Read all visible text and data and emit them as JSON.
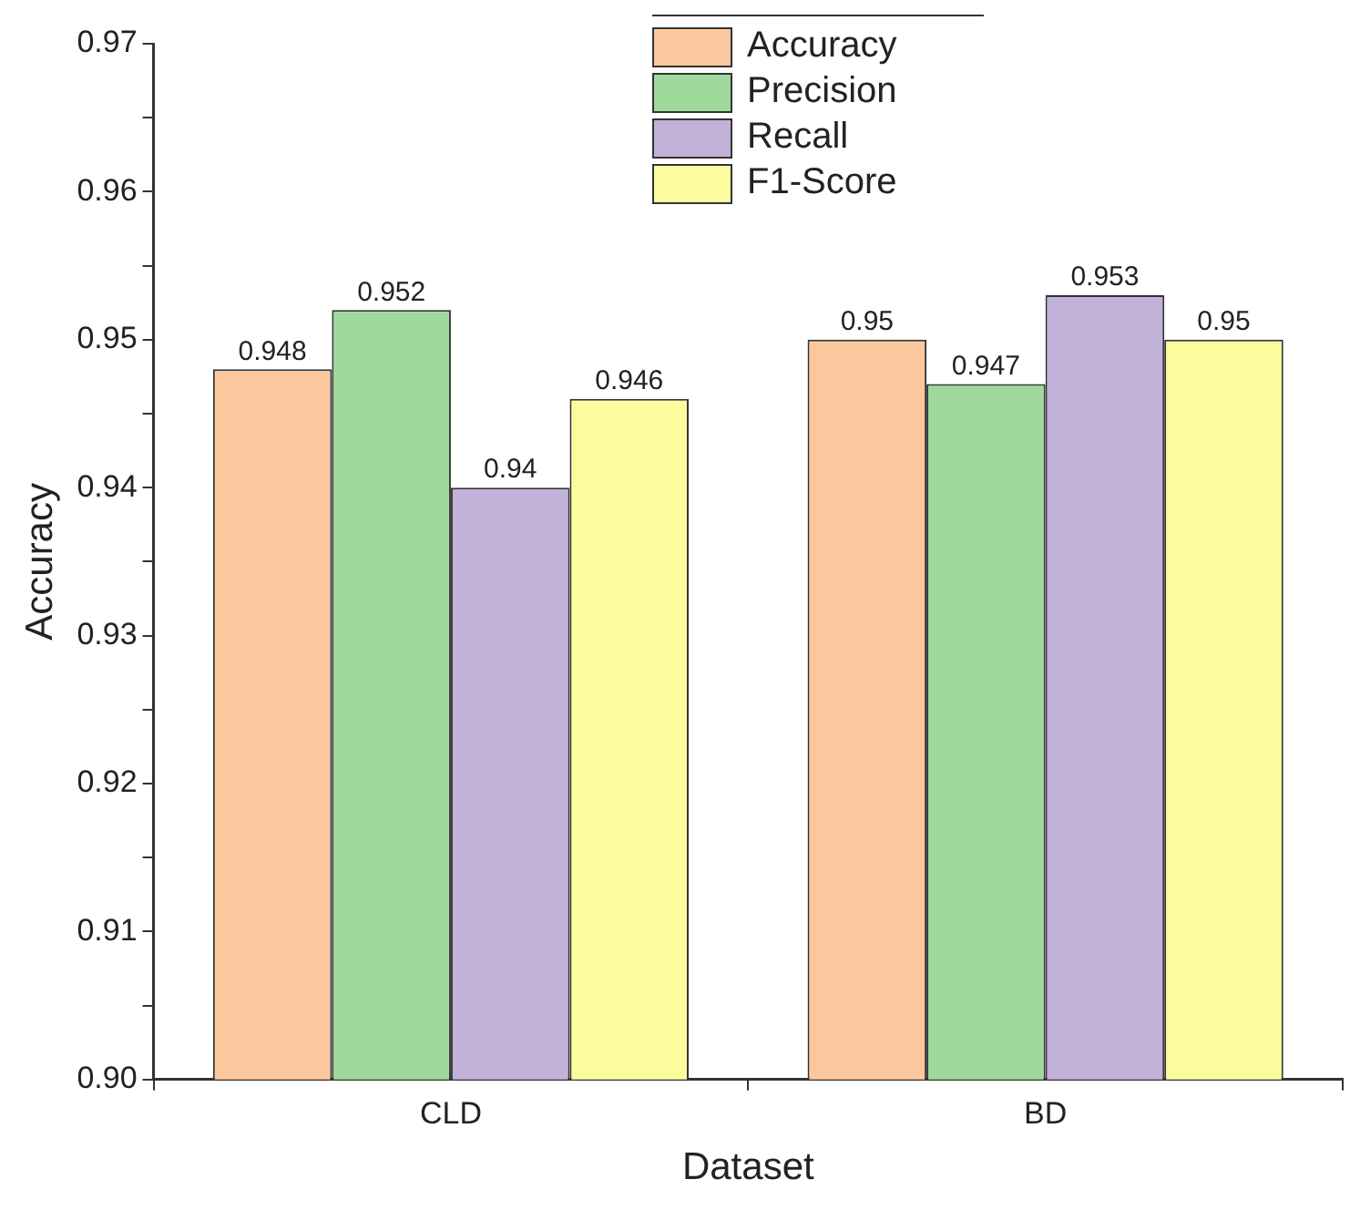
{
  "chart_data": {
    "type": "bar",
    "xlabel": "Dataset",
    "ylabel": "Accuracy",
    "categories": [
      "CLD",
      "BD"
    ],
    "series": [
      {
        "name": "Accuracy",
        "color": "#fbc89e",
        "values": [
          0.948,
          0.95
        ]
      },
      {
        "name": "Precision",
        "color": "#9fd99c",
        "values": [
          0.952,
          0.947
        ]
      },
      {
        "name": "Recall",
        "color": "#c2b1d9",
        "values": [
          0.94,
          0.953
        ]
      },
      {
        "name": "F1-Score",
        "color": "#fcfc9e",
        "values": [
          0.946,
          0.95
        ]
      }
    ],
    "ylim": [
      0.9,
      0.97
    ],
    "yticks": [
      {
        "value": 0.9,
        "label": "0.90"
      },
      {
        "value": 0.905,
        "label": null
      },
      {
        "value": 0.91,
        "label": "0.91"
      },
      {
        "value": 0.915,
        "label": null
      },
      {
        "value": 0.92,
        "label": "0.92"
      },
      {
        "value": 0.925,
        "label": null
      },
      {
        "value": 0.93,
        "label": "0.93"
      },
      {
        "value": 0.935,
        "label": null
      },
      {
        "value": 0.94,
        "label": "0.94"
      },
      {
        "value": 0.945,
        "label": null
      },
      {
        "value": 0.95,
        "label": "0.95"
      },
      {
        "value": 0.955,
        "label": null
      },
      {
        "value": 0.96,
        "label": "0.96"
      },
      {
        "value": 0.965,
        "label": null
      },
      {
        "value": 0.97,
        "label": "0.97"
      }
    ],
    "data_labels": true,
    "grid": false,
    "legend": "top"
  }
}
